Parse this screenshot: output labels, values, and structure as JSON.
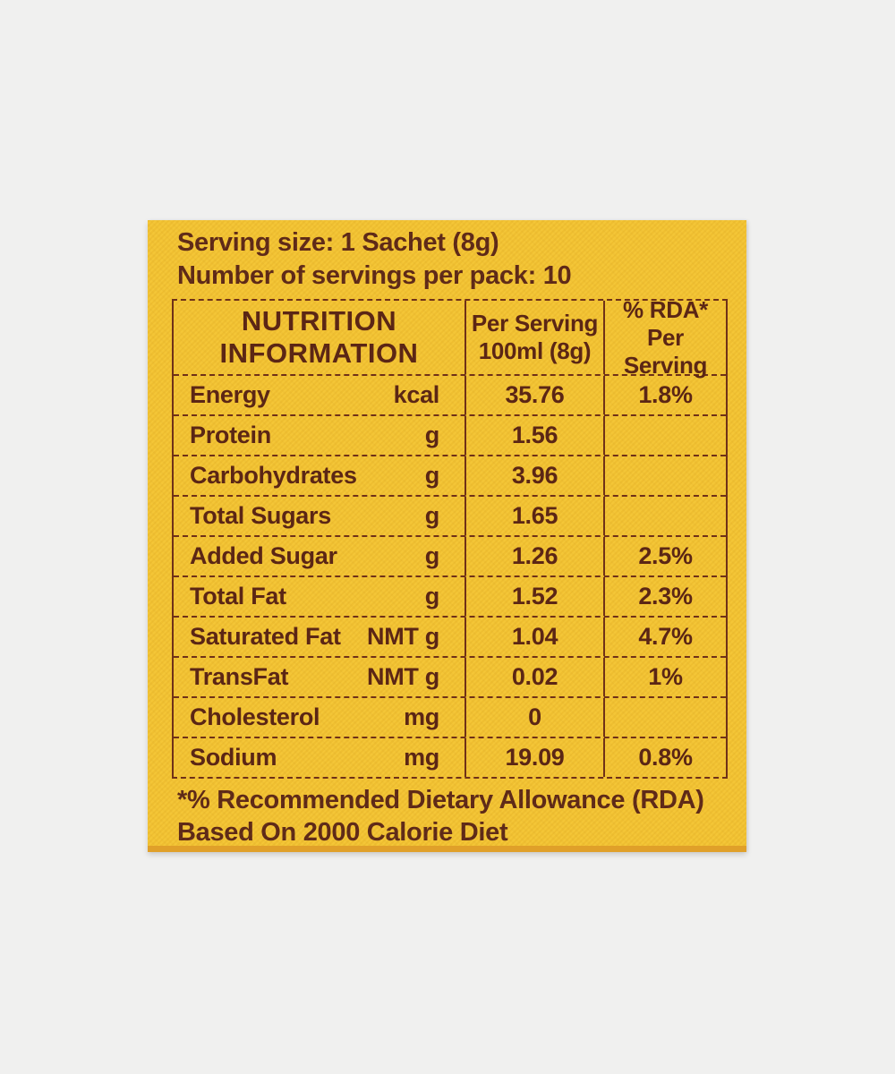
{
  "label": {
    "serving_size_line": "Serving size: 1 Sachet (8g)",
    "servings_per_pack_line": "Number of servings per pack: 10",
    "footnote_line1": "*% Recommended Dietary Allowance (RDA)",
    "footnote_line2": "Based On 2000 Calorie Diet"
  },
  "table": {
    "header": {
      "col1_line1": "NUTRITION",
      "col1_line2": "INFORMATION",
      "col2_line1": "Per Serving",
      "col2_line2": "100ml (8g)",
      "col3_line1": "% RDA*",
      "col3_line2": "Per Serving"
    },
    "rows": [
      {
        "nutrient": "Energy",
        "unit": "kcal",
        "per_serving": "35.76",
        "rda": "1.8%"
      },
      {
        "nutrient": "Protein",
        "unit": "g",
        "per_serving": "1.56",
        "rda": ""
      },
      {
        "nutrient": "Carbohydrates",
        "unit": "g",
        "per_serving": "3.96",
        "rda": ""
      },
      {
        "nutrient": "Total Sugars",
        "unit": "g",
        "per_serving": "1.65",
        "rda": ""
      },
      {
        "nutrient": "Added Sugar",
        "unit": "g",
        "per_serving": "1.26",
        "rda": "2.5%"
      },
      {
        "nutrient": "Total Fat",
        "unit": "g",
        "per_serving": "1.52",
        "rda": "2.3%"
      },
      {
        "nutrient": "Saturated Fat",
        "unit": "NMT g",
        "per_serving": "1.04",
        "rda": "4.7%"
      },
      {
        "nutrient": "TransFat",
        "unit": "NMT g",
        "per_serving": "0.02",
        "rda": "1%"
      },
      {
        "nutrient": "Cholesterol",
        "unit": "mg",
        "per_serving": "0",
        "rda": ""
      },
      {
        "nutrient": "Sodium",
        "unit": "mg",
        "per_serving": "19.09",
        "rda": "0.8%"
      }
    ]
  },
  "colors": {
    "label_background": "#F4C431",
    "label_bottom_edge": "#E0A029",
    "text_brown": "#5B2615",
    "border_brown": "#6F3118",
    "page_background": "#F0F0EF"
  }
}
